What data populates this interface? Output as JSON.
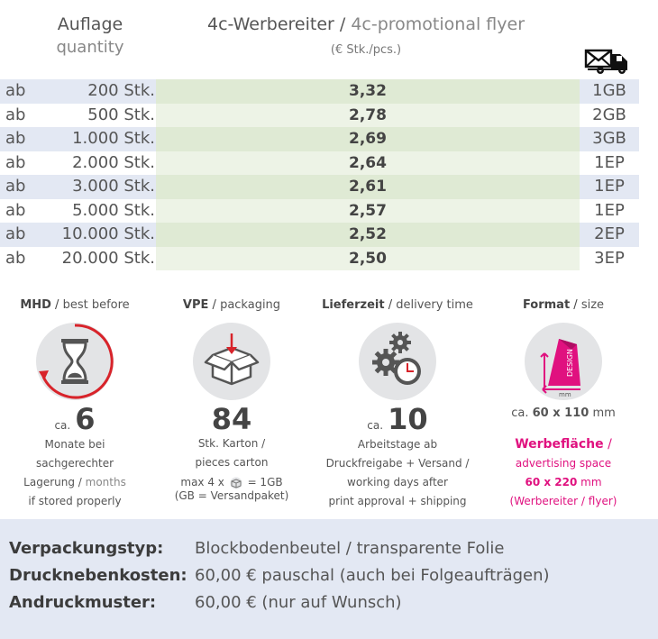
{
  "header": {
    "qty_de": "Auflage",
    "qty_en": "quantity",
    "title_de": "4c-Werbereiter",
    "title_sep": " / ",
    "title_en": "4c-promotional flyer",
    "unit": "(€ Stk./pcs.)",
    "shipping_icon": "envelope-truck-icon"
  },
  "rows": [
    {
      "ab": "ab",
      "qty": "200 Stk.",
      "price": "3,32",
      "ship": "1GB"
    },
    {
      "ab": "ab",
      "qty": "500 Stk.",
      "price": "2,78",
      "ship": "2GB"
    },
    {
      "ab": "ab",
      "qty": "1.000 Stk.",
      "price": "2,69",
      "ship": "3GB"
    },
    {
      "ab": "ab",
      "qty": "2.000 Stk.",
      "price": "2,64",
      "ship": "1EP"
    },
    {
      "ab": "ab",
      "qty": "3.000 Stk.",
      "price": "2,61",
      "ship": "1EP"
    },
    {
      "ab": "ab",
      "qty": "5.000 Stk.",
      "price": "2,57",
      "ship": "1EP"
    },
    {
      "ab": "ab",
      "qty": "10.000 Stk.",
      "price": "2,52",
      "ship": "2EP"
    },
    {
      "ab": "ab",
      "qty": "20.000 Stk.",
      "price": "2,50",
      "ship": "3EP"
    }
  ],
  "mhd": {
    "title_de": "MHD",
    "title_en": "best before",
    "icon": "hourglass-icon",
    "prefix": "ca.",
    "value": "6",
    "line1": "Monate bei",
    "line2": "sachgerechter",
    "line3_de": "Lagerung",
    "line3_en": "months",
    "line4": "if stored properly"
  },
  "vpe": {
    "title_de": "VPE",
    "title_en": "packaging",
    "icon": "box-icon",
    "value": "84",
    "line1": "Stk. Karton /",
    "line2": "pieces carton",
    "line3a": "max 4 x",
    "line3b": "= 1GB",
    "line4": "(GB = Versandpaket)"
  },
  "delivery": {
    "title_de": "Lieferzeit",
    "title_en": "delivery time",
    "icon": "gears-clock-icon",
    "prefix": "ca.",
    "value": "10",
    "line1": "Arbeitstage ab",
    "line2": "Druckfreigabe + Versand /",
    "line3": "working days after",
    "line4": "print approval + shipping"
  },
  "format": {
    "title_de": "Format",
    "title_en": "size",
    "icon": "flyer-format-icon",
    "icon_text": "DESIGN",
    "icon_unit": "mm",
    "size_prefix": "ca.",
    "size_value": "60 x 110",
    "size_unit": "mm",
    "line1_de": "Werbefläche",
    "line1_sep": " /",
    "line2": "advertising space",
    "line3_value": "60 x 220",
    "line3_unit": "mm",
    "line4": "(Werbereiter / flyer)",
    "accent": "#e0117f"
  },
  "details": [
    {
      "label": "Verpackungstyp:",
      "value": "Blockbodenbeutel / transparente Folie"
    },
    {
      "label": "Drucknebenkosten:",
      "value": "60,00 € pauschal (auch bei Folgeaufträgen)"
    },
    {
      "label": "Andruckmuster:",
      "value": "60,00 € (nur auf Wunsch)"
    }
  ]
}
